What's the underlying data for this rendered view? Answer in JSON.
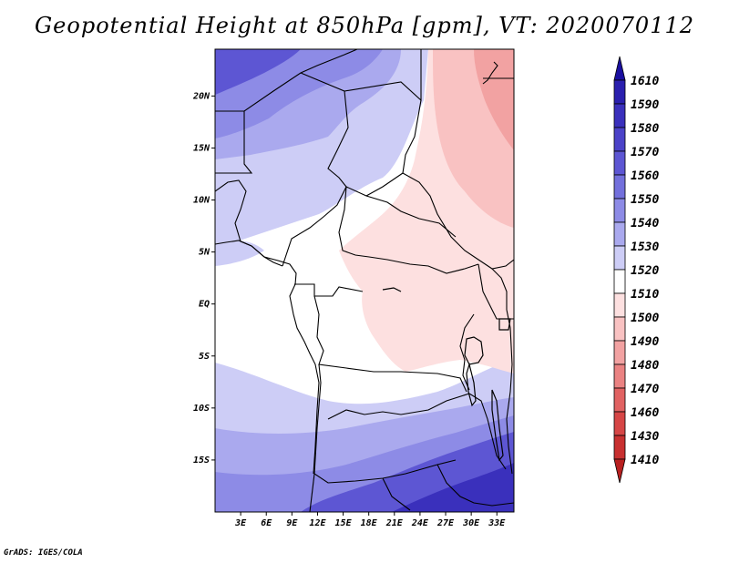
{
  "title": "Geopotential Height at 850hPa [gpm], VT: 2020070112",
  "credit": "GrADS: IGES/COLA",
  "map": {
    "lon_range": [
      0,
      35
    ],
    "lat_range": [
      -20,
      24.5
    ],
    "lon_ticks": [
      {
        "v": 3,
        "label": "3E"
      },
      {
        "v": 6,
        "label": "6E"
      },
      {
        "v": 9,
        "label": "9E"
      },
      {
        "v": 12,
        "label": "12E"
      },
      {
        "v": 15,
        "label": "15E"
      },
      {
        "v": 18,
        "label": "18E"
      },
      {
        "v": 21,
        "label": "21E"
      },
      {
        "v": 24,
        "label": "24E"
      },
      {
        "v": 27,
        "label": "27E"
      },
      {
        "v": 30,
        "label": "30E"
      },
      {
        "v": 33,
        "label": "33E"
      }
    ],
    "lat_ticks": [
      {
        "v": 20,
        "label": "20N"
      },
      {
        "v": 15,
        "label": "15N"
      },
      {
        "v": 10,
        "label": "10N"
      },
      {
        "v": 5,
        "label": "5N"
      },
      {
        "v": 0,
        "label": "EQ"
      },
      {
        "v": -5,
        "label": "5S"
      },
      {
        "v": -10,
        "label": "10S"
      },
      {
        "v": -15,
        "label": "15S"
      }
    ]
  },
  "colorbar": {
    "levels": [
      {
        "label": "1610",
        "color": "#1a0fa0"
      },
      {
        "label": "1590",
        "color": "#2a1fae"
      },
      {
        "label": "1580",
        "color": "#3a30bc"
      },
      {
        "label": "1570",
        "color": "#4b42c8"
      },
      {
        "label": "1560",
        "color": "#5d56d3"
      },
      {
        "label": "1550",
        "color": "#7370dc"
      },
      {
        "label": "1540",
        "color": "#8d8be6"
      },
      {
        "label": "1530",
        "color": "#aaa9ee"
      },
      {
        "label": "1520",
        "color": "#cdcdf6"
      },
      {
        "label": "1510",
        "color": "#ffffff"
      },
      {
        "label": "1500",
        "color": "#fde0e0"
      },
      {
        "label": "1490",
        "color": "#f9c2c2"
      },
      {
        "label": "1480",
        "color": "#f2a2a2"
      },
      {
        "label": "1470",
        "color": "#ea8282"
      },
      {
        "label": "1460",
        "color": "#e16262"
      },
      {
        "label": "1430",
        "color": "#d64646"
      },
      {
        "label": "1410",
        "color": "#c83030"
      }
    ],
    "bottom_color": "#b82020"
  },
  "field_colors": {
    "deep_blue": "#3a30bc",
    "blue": "#5d56d3",
    "mid_blue": "#8d8be6",
    "light_blue": "#aaa9ee",
    "pale_blue": "#cdcdf6",
    "white": "#ffffff",
    "pale_red": "#fde0e0",
    "light_red": "#f9c2c2",
    "mid_red": "#f2a2a2"
  }
}
